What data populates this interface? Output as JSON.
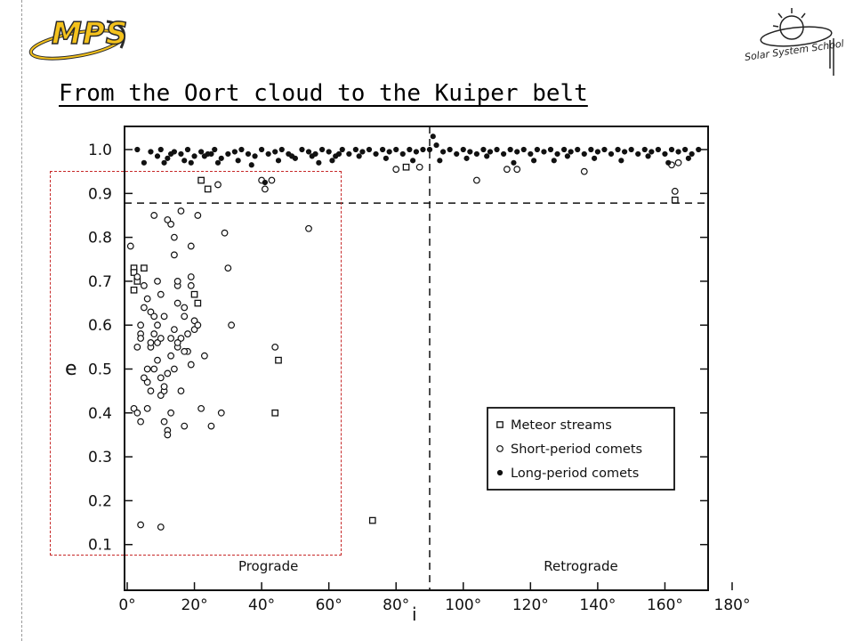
{
  "slide": {
    "title": "From the Oort cloud to the Kuiper belt",
    "logo_left_text": "MPS",
    "logo_right_text": "Solar System School"
  },
  "colors": {
    "mps_yellow": "#f4c21c",
    "highlight_box": "#c62828",
    "ink": "#111111"
  },
  "chart_data": {
    "type": "scatter",
    "xlabel": "i",
    "ylabel": "e",
    "xlim": [
      0,
      180
    ],
    "ylim": [
      0,
      1.05
    ],
    "x_ticks": [
      "0°",
      "20°",
      "40°",
      "60°",
      "80°",
      "100°",
      "120°",
      "140°",
      "160°",
      "180°"
    ],
    "x_tick_values": [
      0,
      20,
      40,
      60,
      80,
      100,
      120,
      140,
      160,
      180
    ],
    "y_ticks": [
      "0.1",
      "0.2",
      "0.3",
      "0.4",
      "0.5",
      "0.6",
      "0.7",
      "0.8",
      "0.9",
      "1.0"
    ],
    "y_tick_values": [
      0.1,
      0.2,
      0.3,
      0.4,
      0.5,
      0.6,
      0.7,
      0.8,
      0.9,
      1.0
    ],
    "reference_lines": {
      "vertical_x": 90,
      "horizontal_y": 0.878
    },
    "region_labels": {
      "left": "Prograde",
      "right": "Retrograde"
    },
    "legend_position": "lower-right",
    "series": [
      {
        "name": "Meteor streams",
        "marker": "open-square",
        "points": [
          [
            2,
            0.73
          ],
          [
            2,
            0.72
          ],
          [
            3,
            0.7
          ],
          [
            2,
            0.68
          ],
          [
            5,
            0.73
          ],
          [
            20,
            0.67
          ],
          [
            21,
            0.65
          ],
          [
            22,
            0.93
          ],
          [
            24,
            0.91
          ],
          [
            45,
            0.52
          ],
          [
            44,
            0.4
          ],
          [
            73,
            0.155
          ],
          [
            83,
            0.96
          ],
          [
            163,
            0.885
          ]
        ]
      },
      {
        "name": "Short-period comets",
        "marker": "open-circle",
        "points": [
          [
            1,
            0.78
          ],
          [
            2,
            0.41
          ],
          [
            3,
            0.71
          ],
          [
            4,
            0.38
          ],
          [
            4,
            0.58
          ],
          [
            5,
            0.64
          ],
          [
            6,
            0.47
          ],
          [
            6,
            0.5
          ],
          [
            7,
            0.63
          ],
          [
            8,
            0.85
          ],
          [
            9,
            0.56
          ],
          [
            10,
            0.44
          ],
          [
            11,
            0.45
          ],
          [
            12,
            0.49
          ],
          [
            13,
            0.83
          ],
          [
            14,
            0.76
          ],
          [
            15,
            0.69
          ],
          [
            15,
            0.55
          ],
          [
            16,
            0.57
          ],
          [
            17,
            0.64
          ],
          [
            18,
            0.54
          ],
          [
            19,
            0.78
          ],
          [
            20,
            0.61
          ],
          [
            21,
            0.85
          ],
          [
            22,
            0.41
          ],
          [
            23,
            0.53
          ],
          [
            25,
            0.37
          ],
          [
            27,
            0.92
          ],
          [
            29,
            0.81
          ],
          [
            30,
            0.73
          ],
          [
            31,
            0.6
          ],
          [
            28,
            0.4
          ],
          [
            40,
            0.93
          ],
          [
            41,
            0.91
          ],
          [
            43,
            0.93
          ],
          [
            44,
            0.55
          ],
          [
            54,
            0.82
          ],
          [
            80,
            0.955
          ],
          [
            87,
            0.96
          ],
          [
            104,
            0.93
          ],
          [
            113,
            0.955
          ],
          [
            116,
            0.955
          ],
          [
            136,
            0.95
          ],
          [
            162,
            0.965
          ],
          [
            163,
            0.905
          ],
          [
            164,
            0.97
          ],
          [
            4,
            0.57
          ],
          [
            3,
            0.4
          ],
          [
            6,
            0.41
          ],
          [
            7,
            0.55
          ],
          [
            8,
            0.5
          ],
          [
            9,
            0.7
          ],
          [
            10,
            0.48
          ],
          [
            11,
            0.38
          ],
          [
            12,
            0.36
          ],
          [
            13,
            0.4
          ],
          [
            14,
            0.59
          ],
          [
            15,
            0.65
          ],
          [
            16,
            0.45
          ],
          [
            17,
            0.37
          ],
          [
            18,
            0.58
          ],
          [
            19,
            0.51
          ],
          [
            20,
            0.59
          ],
          [
            5,
            0.69
          ],
          [
            7,
            0.45
          ],
          [
            9,
            0.52
          ],
          [
            11,
            0.46
          ],
          [
            13,
            0.57
          ],
          [
            15,
            0.7
          ],
          [
            17,
            0.62
          ],
          [
            19,
            0.71
          ],
          [
            16,
            0.86
          ],
          [
            14,
            0.8
          ],
          [
            12,
            0.84
          ],
          [
            10,
            0.67
          ],
          [
            8,
            0.58
          ],
          [
            6,
            0.66
          ],
          [
            4,
            0.6
          ],
          [
            3,
            0.55
          ],
          [
            5,
            0.48
          ],
          [
            7,
            0.56
          ],
          [
            9,
            0.6
          ],
          [
            11,
            0.62
          ],
          [
            13,
            0.53
          ],
          [
            15,
            0.56
          ],
          [
            17,
            0.54
          ],
          [
            19,
            0.69
          ],
          [
            21,
            0.6
          ],
          [
            14,
            0.5
          ],
          [
            12,
            0.35
          ],
          [
            10,
            0.57
          ],
          [
            8,
            0.62
          ],
          [
            4,
            0.145
          ],
          [
            10,
            0.14
          ]
        ]
      },
      {
        "name": "Long-period comets",
        "marker": "filled-circle",
        "points": [
          [
            3,
            1.0
          ],
          [
            7,
            0.995
          ],
          [
            10,
            1.0
          ],
          [
            12,
            0.98
          ],
          [
            14,
            0.995
          ],
          [
            16,
            0.99
          ],
          [
            18,
            1.0
          ],
          [
            20,
            0.985
          ],
          [
            22,
            0.995
          ],
          [
            24,
            0.99
          ],
          [
            26,
            1.0
          ],
          [
            28,
            0.98
          ],
          [
            30,
            0.99
          ],
          [
            32,
            0.995
          ],
          [
            34,
            1.0
          ],
          [
            36,
            0.99
          ],
          [
            38,
            0.985
          ],
          [
            40,
            1.0
          ],
          [
            42,
            0.99
          ],
          [
            44,
            0.995
          ],
          [
            46,
            1.0
          ],
          [
            48,
            0.99
          ],
          [
            50,
            0.98
          ],
          [
            52,
            1.0
          ],
          [
            54,
            0.995
          ],
          [
            56,
            0.99
          ],
          [
            58,
            1.0
          ],
          [
            60,
            0.995
          ],
          [
            62,
            0.985
          ],
          [
            64,
            1.0
          ],
          [
            66,
            0.99
          ],
          [
            68,
            1.0
          ],
          [
            70,
            0.995
          ],
          [
            72,
            1.0
          ],
          [
            74,
            0.99
          ],
          [
            76,
            1.0
          ],
          [
            78,
            0.995
          ],
          [
            80,
            1.0
          ],
          [
            82,
            0.99
          ],
          [
            84,
            1.0
          ],
          [
            86,
            0.995
          ],
          [
            88,
            1.0
          ],
          [
            90,
            1.0
          ],
          [
            92,
            1.01
          ],
          [
            94,
            0.995
          ],
          [
            96,
            1.0
          ],
          [
            98,
            0.99
          ],
          [
            100,
            1.0
          ],
          [
            102,
            0.995
          ],
          [
            104,
            0.99
          ],
          [
            106,
            1.0
          ],
          [
            108,
            0.995
          ],
          [
            110,
            1.0
          ],
          [
            112,
            0.99
          ],
          [
            114,
            1.0
          ],
          [
            116,
            0.995
          ],
          [
            118,
            1.0
          ],
          [
            120,
            0.99
          ],
          [
            122,
            1.0
          ],
          [
            124,
            0.995
          ],
          [
            126,
            1.0
          ],
          [
            128,
            0.99
          ],
          [
            130,
            1.0
          ],
          [
            132,
            0.995
          ],
          [
            134,
            1.0
          ],
          [
            136,
            0.99
          ],
          [
            138,
            1.0
          ],
          [
            140,
            0.995
          ],
          [
            142,
            1.0
          ],
          [
            144,
            0.99
          ],
          [
            146,
            1.0
          ],
          [
            148,
            0.995
          ],
          [
            150,
            1.0
          ],
          [
            152,
            0.99
          ],
          [
            154,
            1.0
          ],
          [
            156,
            0.995
          ],
          [
            158,
            1.0
          ],
          [
            160,
            0.99
          ],
          [
            162,
            1.0
          ],
          [
            164,
            0.995
          ],
          [
            166,
            1.0
          ],
          [
            168,
            0.99
          ],
          [
            170,
            1.0
          ],
          [
            5,
            0.97
          ],
          [
            11,
            0.97
          ],
          [
            13,
            0.99
          ],
          [
            17,
            0.975
          ],
          [
            19,
            0.97
          ],
          [
            23,
            0.985
          ],
          [
            27,
            0.97
          ],
          [
            33,
            0.975
          ],
          [
            37,
            0.965
          ],
          [
            45,
            0.975
          ],
          [
            49,
            0.985
          ],
          [
            57,
            0.97
          ],
          [
            61,
            0.975
          ],
          [
            69,
            0.985
          ],
          [
            77,
            0.98
          ],
          [
            85,
            0.975
          ],
          [
            93,
            0.975
          ],
          [
            101,
            0.98
          ],
          [
            107,
            0.985
          ],
          [
            115,
            0.97
          ],
          [
            121,
            0.975
          ],
          [
            127,
            0.975
          ],
          [
            131,
            0.985
          ],
          [
            139,
            0.98
          ],
          [
            147,
            0.975
          ],
          [
            155,
            0.985
          ],
          [
            161,
            0.97
          ],
          [
            167,
            0.98
          ],
          [
            91,
            1.03
          ],
          [
            41,
            0.925
          ],
          [
            55,
            0.985
          ],
          [
            63,
            0.99
          ],
          [
            25,
            0.99
          ],
          [
            9,
            0.985
          ]
        ]
      }
    ]
  }
}
